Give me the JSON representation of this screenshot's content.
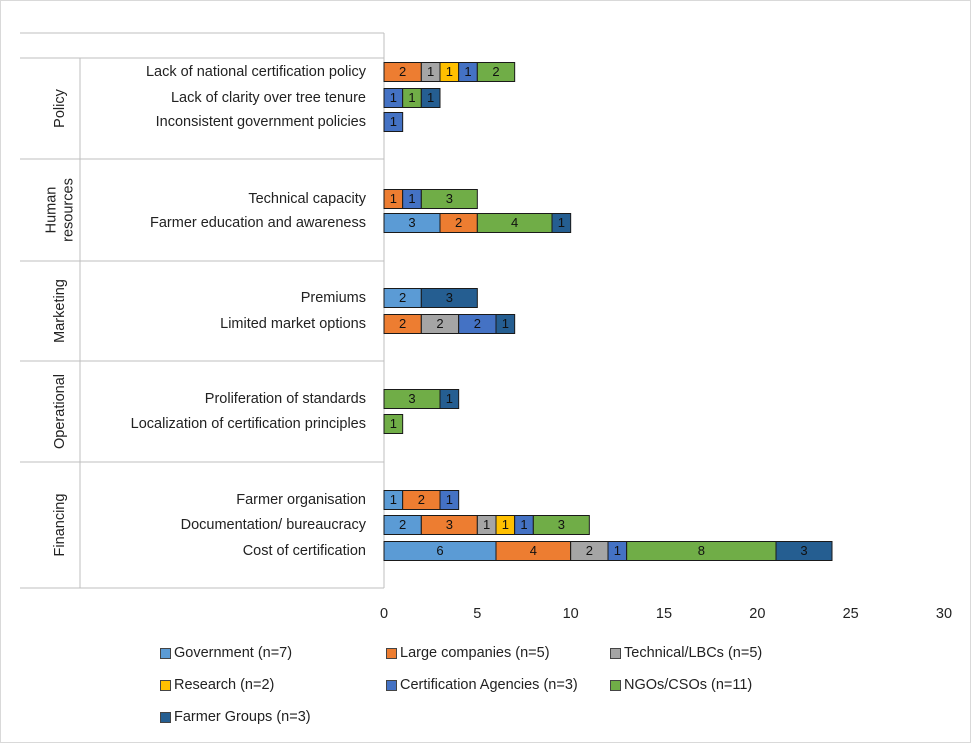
{
  "chart_data": {
    "type": "bar",
    "orientation": "horizontal",
    "stacked": true,
    "title": "",
    "xlabel": "",
    "ylabel": "",
    "xlim": [
      0,
      30
    ],
    "x_ticks": [
      0,
      5,
      10,
      15,
      20,
      25,
      30
    ],
    "grid": false,
    "legend_position": "bottom",
    "groups": [
      {
        "name": "Policy",
        "categories": [
          "Lack of national certification policy",
          "Lack of clarity over tree tenure",
          "Inconsistent government policies"
        ]
      },
      {
        "name": "Human resources",
        "categories": [
          "Technical capacity",
          "Farmer education and awareness"
        ]
      },
      {
        "name": "Marketing",
        "categories": [
          "Premiums",
          "Limited market options"
        ]
      },
      {
        "name": "Operational",
        "categories": [
          "Proliferation of standards",
          "Localization of certification principles"
        ]
      },
      {
        "name": "Financing",
        "categories": [
          "Farmer organisation",
          "Documentation/ bureaucracy",
          "Cost of certification"
        ]
      }
    ],
    "categories": [
      "Lack of national certification policy",
      "Lack of clarity over tree tenure",
      "Inconsistent government policies",
      "Technical capacity",
      "Farmer education and awareness",
      "Premiums",
      "Limited market options",
      "Proliferation of standards",
      "Localization of certification principles",
      "Farmer organisation",
      "Documentation/ bureaucracy",
      "Cost of certification"
    ],
    "series": [
      {
        "name": "Government (n=7)",
        "color": "#5B9BD5",
        "values": [
          0,
          0,
          0,
          0,
          3,
          2,
          0,
          0,
          0,
          1,
          2,
          6
        ]
      },
      {
        "name": "Large companies (n=5)",
        "color": "#ED7D31",
        "values": [
          2,
          0,
          0,
          1,
          2,
          0,
          2,
          0,
          0,
          2,
          3,
          4
        ]
      },
      {
        "name": "Technical/LBCs  (n=5)",
        "color": "#A5A5A5",
        "values": [
          1,
          0,
          0,
          0,
          0,
          0,
          2,
          0,
          0,
          0,
          1,
          2
        ]
      },
      {
        "name": "Research (n=2)",
        "color": "#FFC000",
        "values": [
          1,
          0,
          0,
          0,
          0,
          0,
          0,
          0,
          0,
          0,
          1,
          0
        ]
      },
      {
        "name": "Certification Agencies (n=3)",
        "color": "#4472C4",
        "values": [
          1,
          1,
          1,
          1,
          0,
          0,
          2,
          0,
          0,
          1,
          1,
          1
        ]
      },
      {
        "name": "NGOs/CSOs (n=11)",
        "color": "#70AD47",
        "values": [
          2,
          1,
          0,
          3,
          4,
          0,
          0,
          3,
          1,
          0,
          3,
          8
        ]
      },
      {
        "name": "Farmer Groups (n=3)",
        "color": "#255E91",
        "values": [
          0,
          1,
          0,
          0,
          1,
          3,
          1,
          1,
          0,
          0,
          0,
          3
        ]
      }
    ]
  }
}
